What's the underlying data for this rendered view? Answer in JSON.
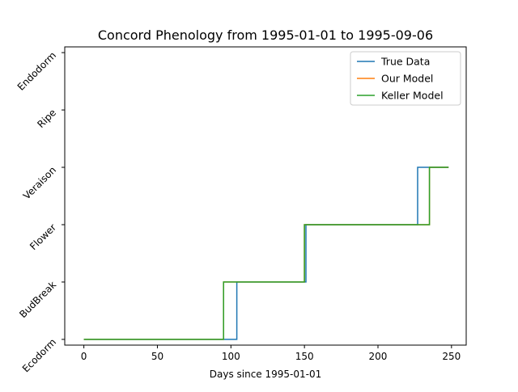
{
  "chart_data": {
    "type": "line",
    "title": "Concord Phenology from 1995-01-01 to 1995-09-06",
    "xlabel": "Days since 1995-01-01",
    "ylabel": "",
    "xlim": [
      -13,
      260
    ],
    "ylim": [
      -0.1,
      5.1
    ],
    "x_ticks": [
      0,
      50,
      100,
      150,
      200,
      250
    ],
    "y_tick_values": [
      0,
      1,
      2,
      3,
      4,
      5
    ],
    "y_tick_labels": [
      "Ecodorm",
      "BudBreak",
      "Flower",
      "Veraison",
      "Ripe",
      "Endodorm"
    ],
    "grid": false,
    "legend_position": "top-right",
    "series": [
      {
        "name": "True Data",
        "color": "#1f77b4",
        "x": [
          0,
          104,
          104,
          151,
          151,
          227,
          227,
          248
        ],
        "y": [
          0,
          0,
          1,
          1,
          2,
          2,
          3,
          3
        ]
      },
      {
        "name": "Our Model",
        "color": "#ff7f0e",
        "x": [
          0,
          95,
          95,
          150,
          150,
          235,
          235,
          248
        ],
        "y": [
          0,
          0,
          1,
          1,
          2,
          2,
          3,
          3
        ]
      },
      {
        "name": "Keller Model",
        "color": "#2ca02c",
        "x": [
          0,
          95,
          95,
          150,
          150,
          235,
          235,
          248
        ],
        "y": [
          0,
          0,
          1,
          1,
          2,
          2,
          3,
          3
        ]
      }
    ]
  }
}
